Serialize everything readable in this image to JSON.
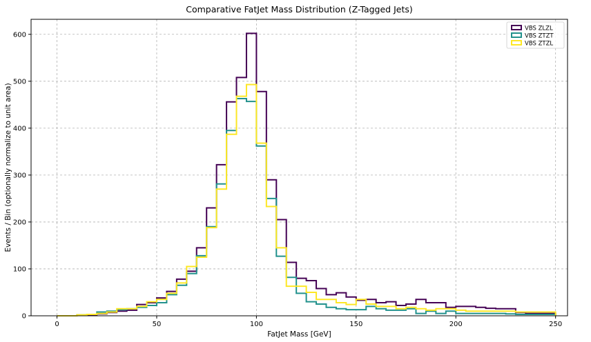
{
  "chart_data": {
    "type": "histogram-step",
    "title": "Comparative FatJet Mass Distribution (Z-Tagged Jets)",
    "xlabel": "FatJet Mass [GeV]",
    "ylabel": "Events / Bin (optionally normalize to unit area)",
    "xlim": [
      -13,
      256
    ],
    "ylim": [
      0,
      632
    ],
    "xticks": [
      0,
      50,
      100,
      150,
      200,
      250
    ],
    "yticks": [
      0,
      100,
      200,
      300,
      400,
      500,
      600
    ],
    "grid": true,
    "legend_position": "top-right",
    "bin_edges_start": 0,
    "bin_width": 5,
    "series": [
      {
        "name": "VBS ZLZL",
        "color": "#440154",
        "values": [
          0,
          0,
          1,
          2,
          4,
          7,
          10,
          12,
          24,
          28,
          38,
          52,
          78,
          95,
          145,
          230,
          322,
          456,
          508,
          602,
          478,
          290,
          205,
          114,
          80,
          75,
          58,
          45,
          49,
          40,
          33,
          35,
          28,
          30,
          22,
          25,
          35,
          28,
          28,
          18,
          20,
          20,
          18,
          16,
          15,
          15,
          7,
          5,
          5,
          5
        ]
      },
      {
        "name": "VBS ZTZT",
        "color": "#21918c",
        "values": [
          0,
          0,
          2,
          3,
          8,
          10,
          13,
          15,
          18,
          22,
          28,
          45,
          65,
          90,
          128,
          190,
          281,
          395,
          463,
          457,
          362,
          250,
          127,
          82,
          48,
          30,
          25,
          18,
          15,
          13,
          13,
          20,
          15,
          12,
          12,
          15,
          5,
          10,
          5,
          10,
          5,
          5,
          5,
          5,
          5,
          4,
          3,
          3,
          3,
          3
        ]
      },
      {
        "name": "VBS ZTZL",
        "color": "#fde725",
        "values": [
          0,
          0,
          2,
          3,
          5,
          8,
          15,
          15,
          20,
          30,
          35,
          48,
          70,
          105,
          125,
          188,
          270,
          387,
          468,
          493,
          368,
          233,
          145,
          63,
          63,
          50,
          35,
          35,
          28,
          24,
          35,
          25,
          20,
          20,
          15,
          18,
          15,
          12,
          15,
          15,
          12,
          10,
          10,
          10,
          10,
          10,
          8,
          8,
          8,
          8
        ]
      }
    ]
  }
}
